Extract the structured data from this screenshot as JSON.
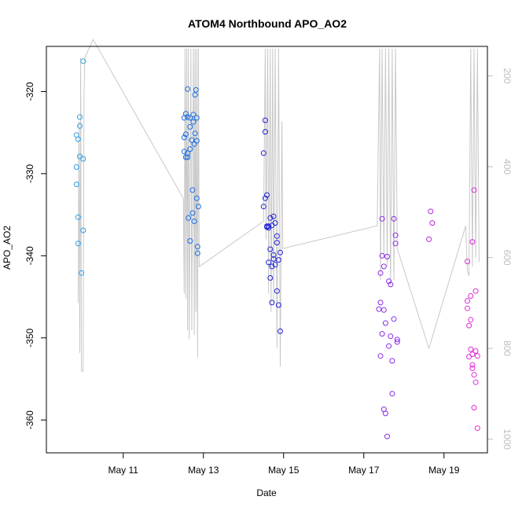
{
  "chart_data": {
    "type": "scatter",
    "title": "ATOM4 Northbound APO_AO2",
    "xlabel": "Date",
    "ylabel": "APO_AO2",
    "xlim": [
      "2016-05-09T02:00",
      "2016-05-20T02:00"
    ],
    "ylim": [
      -364,
      -314.5
    ],
    "x_ticks": [
      "May 11",
      "May 13",
      "May 15",
      "May 17",
      "May 19"
    ],
    "x_tick_dates": [
      "2016-05-11",
      "2016-05-13",
      "2016-05-15",
      "2016-05-17",
      "2016-05-19"
    ],
    "y_ticks": [
      -360,
      -350,
      -340,
      -330,
      -320
    ],
    "y2_ticks": [
      200,
      400,
      600,
      800,
      1000
    ],
    "y2lim": [
      1030,
      135
    ],
    "grid": false,
    "series": [
      {
        "color": "#2c9fe8",
        "points": [
          [
            "2016-05-09T20:00",
            -325.3
          ],
          [
            "2016-05-09T20:00",
            -329.2
          ],
          [
            "2016-05-09T20:00",
            -331.3
          ],
          [
            "2016-05-09T21:00",
            -335.3
          ],
          [
            "2016-05-09T21:00",
            -338.5
          ],
          [
            "2016-05-09T21:00",
            -325.8
          ],
          [
            "2016-05-09T22:00",
            -324.2
          ],
          [
            "2016-05-09T22:00",
            -323.1
          ],
          [
            "2016-05-09T22:00",
            -327.9
          ],
          [
            "2016-05-09T23:00",
            -342.1
          ],
          [
            "2016-05-10T00:00",
            -336.9
          ],
          [
            "2016-05-10T00:00",
            -328.2
          ],
          [
            "2016-05-10T00:00",
            -316.3
          ]
        ]
      },
      {
        "color": "#1a6ee6",
        "points": [
          [
            "2016-05-12T12:30",
            -323.2
          ],
          [
            "2016-05-12T12:30",
            -327.3
          ],
          [
            "2016-05-12T12:30",
            -325.6
          ],
          [
            "2016-05-12T13:30",
            -322.7
          ],
          [
            "2016-05-12T13:30",
            -325.2
          ],
          [
            "2016-05-12T13:30",
            -328.0
          ],
          [
            "2016-05-12T14:30",
            -319.7
          ],
          [
            "2016-05-12T14:30",
            -323.1
          ],
          [
            "2016-05-12T14:30",
            -327.5
          ],
          [
            "2016-05-12T14:30",
            -328.0
          ],
          [
            "2016-05-12T15:00",
            -335.4
          ],
          [
            "2016-05-12T16:00",
            -323.2
          ],
          [
            "2016-05-12T16:00",
            -324.3
          ],
          [
            "2016-05-12T16:00",
            -327.0
          ],
          [
            "2016-05-12T16:00",
            -338.2
          ],
          [
            "2016-05-12T17:00",
            -325.9
          ],
          [
            "2016-05-12T17:30",
            -332.0
          ],
          [
            "2016-05-12T17:30",
            -334.8
          ],
          [
            "2016-05-12T18:00",
            -322.8
          ],
          [
            "2016-05-12T18:00",
            -323.7
          ],
          [
            "2016-05-12T18:30",
            -335.8
          ],
          [
            "2016-05-12T18:30",
            -326.4
          ],
          [
            "2016-05-12T19:00",
            -320.4
          ],
          [
            "2016-05-12T19:00",
            -325.1
          ],
          [
            "2016-05-12T19:30",
            -319.8
          ],
          [
            "2016-05-12T20:00",
            -326.0
          ],
          [
            "2016-05-12T20:00",
            -333.0
          ],
          [
            "2016-05-12T20:00",
            -323.2
          ],
          [
            "2016-05-12T20:30",
            -338.9
          ],
          [
            "2016-05-12T20:30",
            -339.7
          ],
          [
            "2016-05-12T21:00",
            -334.0
          ]
        ]
      },
      {
        "color": "#2222d8",
        "points": [
          [
            "2016-05-14T12:00",
            -327.5
          ],
          [
            "2016-05-14T12:00",
            -334.0
          ],
          [
            "2016-05-14T13:00",
            -323.5
          ],
          [
            "2016-05-14T13:00",
            -324.9
          ],
          [
            "2016-05-14T13:00",
            -333.0
          ],
          [
            "2016-05-14T14:00",
            -336.5
          ],
          [
            "2016-05-14T14:00",
            -332.6
          ],
          [
            "2016-05-14T14:00",
            -336.4
          ],
          [
            "2016-05-14T15:00",
            -340.8
          ],
          [
            "2016-05-14T15:00",
            -336.6
          ],
          [
            "2016-05-14T15:00",
            -336.4
          ],
          [
            "2016-05-14T16:00",
            -339.2
          ],
          [
            "2016-05-14T16:00",
            -342.7
          ],
          [
            "2016-05-14T16:00",
            -335.4
          ],
          [
            "2016-05-14T17:00",
            -341.3
          ],
          [
            "2016-05-14T17:00",
            -336.3
          ],
          [
            "2016-05-14T17:00",
            -345.7
          ],
          [
            "2016-05-14T18:00",
            -339.9
          ],
          [
            "2016-05-14T18:00",
            -340.4
          ],
          [
            "2016-05-14T18:00",
            -335.2
          ],
          [
            "2016-05-14T19:00",
            -336.0
          ],
          [
            "2016-05-14T19:00",
            -341.1
          ],
          [
            "2016-05-14T20:00",
            -337.6
          ],
          [
            "2016-05-14T20:00",
            -338.4
          ],
          [
            "2016-05-14T20:00",
            -344.3
          ],
          [
            "2016-05-14T21:00",
            -340.5
          ],
          [
            "2016-05-14T21:00",
            -346.0
          ],
          [
            "2016-05-14T22:00",
            -339.6
          ],
          [
            "2016-05-14T22:00",
            -349.2
          ]
        ]
      },
      {
        "color": "#8a2be8",
        "points": [
          [
            "2016-05-17T09:00",
            -346.5
          ],
          [
            "2016-05-17T10:00",
            -342.1
          ],
          [
            "2016-05-17T10:00",
            -345.7
          ],
          [
            "2016-05-17T10:00",
            -352.2
          ],
          [
            "2016-05-17T11:00",
            -335.5
          ],
          [
            "2016-05-17T11:00",
            -340.0
          ],
          [
            "2016-05-17T11:00",
            -349.5
          ],
          [
            "2016-05-17T12:00",
            -341.3
          ],
          [
            "2016-05-17T12:00",
            -346.6
          ],
          [
            "2016-05-17T12:00",
            -358.7
          ],
          [
            "2016-05-17T13:00",
            -359.2
          ],
          [
            "2016-05-17T13:00",
            -348.2
          ],
          [
            "2016-05-17T14:00",
            -340.1
          ],
          [
            "2016-05-17T14:00",
            -362.0
          ],
          [
            "2016-05-17T15:00",
            -351.0
          ],
          [
            "2016-05-17T15:00",
            -343.1
          ],
          [
            "2016-05-17T16:00",
            -343.5
          ],
          [
            "2016-05-17T16:00",
            -349.8
          ],
          [
            "2016-05-17T17:00",
            -356.8
          ],
          [
            "2016-05-17T17:00",
            -352.8
          ],
          [
            "2016-05-17T18:00",
            -335.5
          ],
          [
            "2016-05-17T18:00",
            -347.7
          ],
          [
            "2016-05-17T19:00",
            -338.5
          ],
          [
            "2016-05-17T19:00",
            -337.5
          ],
          [
            "2016-05-17T20:00",
            -350.5
          ],
          [
            "2016-05-17T20:00",
            -350.2
          ]
        ]
      },
      {
        "color": "#b52bd8",
        "points": [
          [
            "2016-05-18T15:00",
            -338.0
          ],
          [
            "2016-05-18T16:00",
            -334.6
          ],
          [
            "2016-05-18T17:00",
            -336.0
          ]
        ]
      },
      {
        "color": "#e02ad8",
        "points": [
          [
            "2016-05-19T14:00",
            -340.7
          ],
          [
            "2016-05-19T14:00",
            -345.5
          ],
          [
            "2016-05-19T14:00",
            -346.4
          ],
          [
            "2016-05-19T15:00",
            -352.3
          ],
          [
            "2016-05-19T15:00",
            -348.5
          ],
          [
            "2016-05-19T16:00",
            -344.9
          ],
          [
            "2016-05-19T16:00",
            -347.8
          ],
          [
            "2016-05-19T16:00",
            -351.4
          ],
          [
            "2016-05-19T17:00",
            -353.3
          ],
          [
            "2016-05-19T17:00",
            -353.7
          ],
          [
            "2016-05-19T17:00",
            -352.0
          ],
          [
            "2016-05-19T17:00",
            -338.3
          ],
          [
            "2016-05-19T18:00",
            -332.0
          ],
          [
            "2016-05-19T18:00",
            -358.5
          ],
          [
            "2016-05-19T18:00",
            -354.5
          ],
          [
            "2016-05-19T19:00",
            -344.3
          ],
          [
            "2016-05-19T19:00",
            -355.4
          ],
          [
            "2016-05-19T19:00",
            -351.6
          ],
          [
            "2016-05-19T20:00",
            -352.2
          ],
          [
            "2016-05-19T20:00",
            -361.0
          ]
        ]
      }
    ],
    "secondary_line": {
      "color": "#c8c8c8",
      "points": [
        [
          "2016-05-09T21:00",
          700
        ],
        [
          "2016-05-09T21:30",
          300
        ],
        [
          "2016-05-09T22:00",
          810
        ],
        [
          "2016-05-09T22:30",
          160
        ],
        [
          "2016-05-09T23:00",
          850
        ],
        [
          "2016-05-10T00:00",
          850
        ],
        [
          "2016-05-10T00:30",
          250
        ],
        [
          "2016-05-10T01:00",
          160
        ],
        [
          "2016-05-10T06:00",
          120
        ],
        [
          "2016-05-12T12:00",
          470
        ],
        [
          "2016-05-12T12:30",
          680
        ],
        [
          "2016-05-12T13:00",
          140
        ],
        [
          "2016-05-12T13:30",
          690
        ],
        [
          "2016-05-12T14:00",
          140
        ],
        [
          "2016-05-12T14:30",
          760
        ],
        [
          "2016-05-12T15:00",
          140
        ],
        [
          "2016-05-12T15:30",
          780
        ],
        [
          "2016-05-12T16:30",
          140
        ],
        [
          "2016-05-12T17:00",
          760
        ],
        [
          "2016-05-12T18:00",
          140
        ],
        [
          "2016-05-12T18:30",
          770
        ],
        [
          "2016-05-12T19:00",
          140
        ],
        [
          "2016-05-12T19:30",
          720
        ],
        [
          "2016-05-12T20:00",
          140
        ],
        [
          "2016-05-12T20:30",
          820
        ],
        [
          "2016-05-12T21:00",
          140
        ],
        [
          "2016-05-12T21:30",
          620
        ],
        [
          "2016-05-14T12:00",
          520
        ],
        [
          "2016-05-14T13:00",
          140
        ],
        [
          "2016-05-14T13:30",
          560
        ],
        [
          "2016-05-14T14:30",
          140
        ],
        [
          "2016-05-14T15:00",
          680
        ],
        [
          "2016-05-14T16:00",
          140
        ],
        [
          "2016-05-14T16:30",
          720
        ],
        [
          "2016-05-14T17:30",
          140
        ],
        [
          "2016-05-14T18:00",
          700
        ],
        [
          "2016-05-14T19:00",
          140
        ],
        [
          "2016-05-14T20:00",
          800
        ],
        [
          "2016-05-14T21:00",
          140
        ],
        [
          "2016-05-14T22:00",
          840
        ],
        [
          "2016-05-14T23:00",
          300
        ],
        [
          "2016-05-14T23:30",
          580
        ],
        [
          "2016-05-17T08:00",
          530
        ],
        [
          "2016-05-17T09:30",
          140
        ],
        [
          "2016-05-17T10:00",
          650
        ],
        [
          "2016-05-17T11:00",
          140
        ],
        [
          "2016-05-17T12:00",
          600
        ],
        [
          "2016-05-17T13:00",
          140
        ],
        [
          "2016-05-17T14:00",
          620
        ],
        [
          "2016-05-17T15:00",
          140
        ],
        [
          "2016-05-17T16:00",
          660
        ],
        [
          "2016-05-17T17:00",
          140
        ],
        [
          "2016-05-17T18:00",
          650
        ],
        [
          "2016-05-17T19:00",
          140
        ],
        [
          "2016-05-17T20:00",
          580
        ],
        [
          "2016-05-18T15:00",
          800
        ],
        [
          "2016-05-19T13:00",
          530
        ],
        [
          "2016-05-19T14:00",
          630
        ],
        [
          "2016-05-19T15:00",
          640
        ],
        [
          "2016-05-19T16:00",
          140
        ],
        [
          "2016-05-19T17:00",
          620
        ],
        [
          "2016-05-19T18:00",
          140
        ],
        [
          "2016-05-19T19:00",
          600
        ],
        [
          "2016-05-19T20:00",
          140
        ],
        [
          "2016-05-19T21:00",
          610
        ]
      ]
    }
  }
}
